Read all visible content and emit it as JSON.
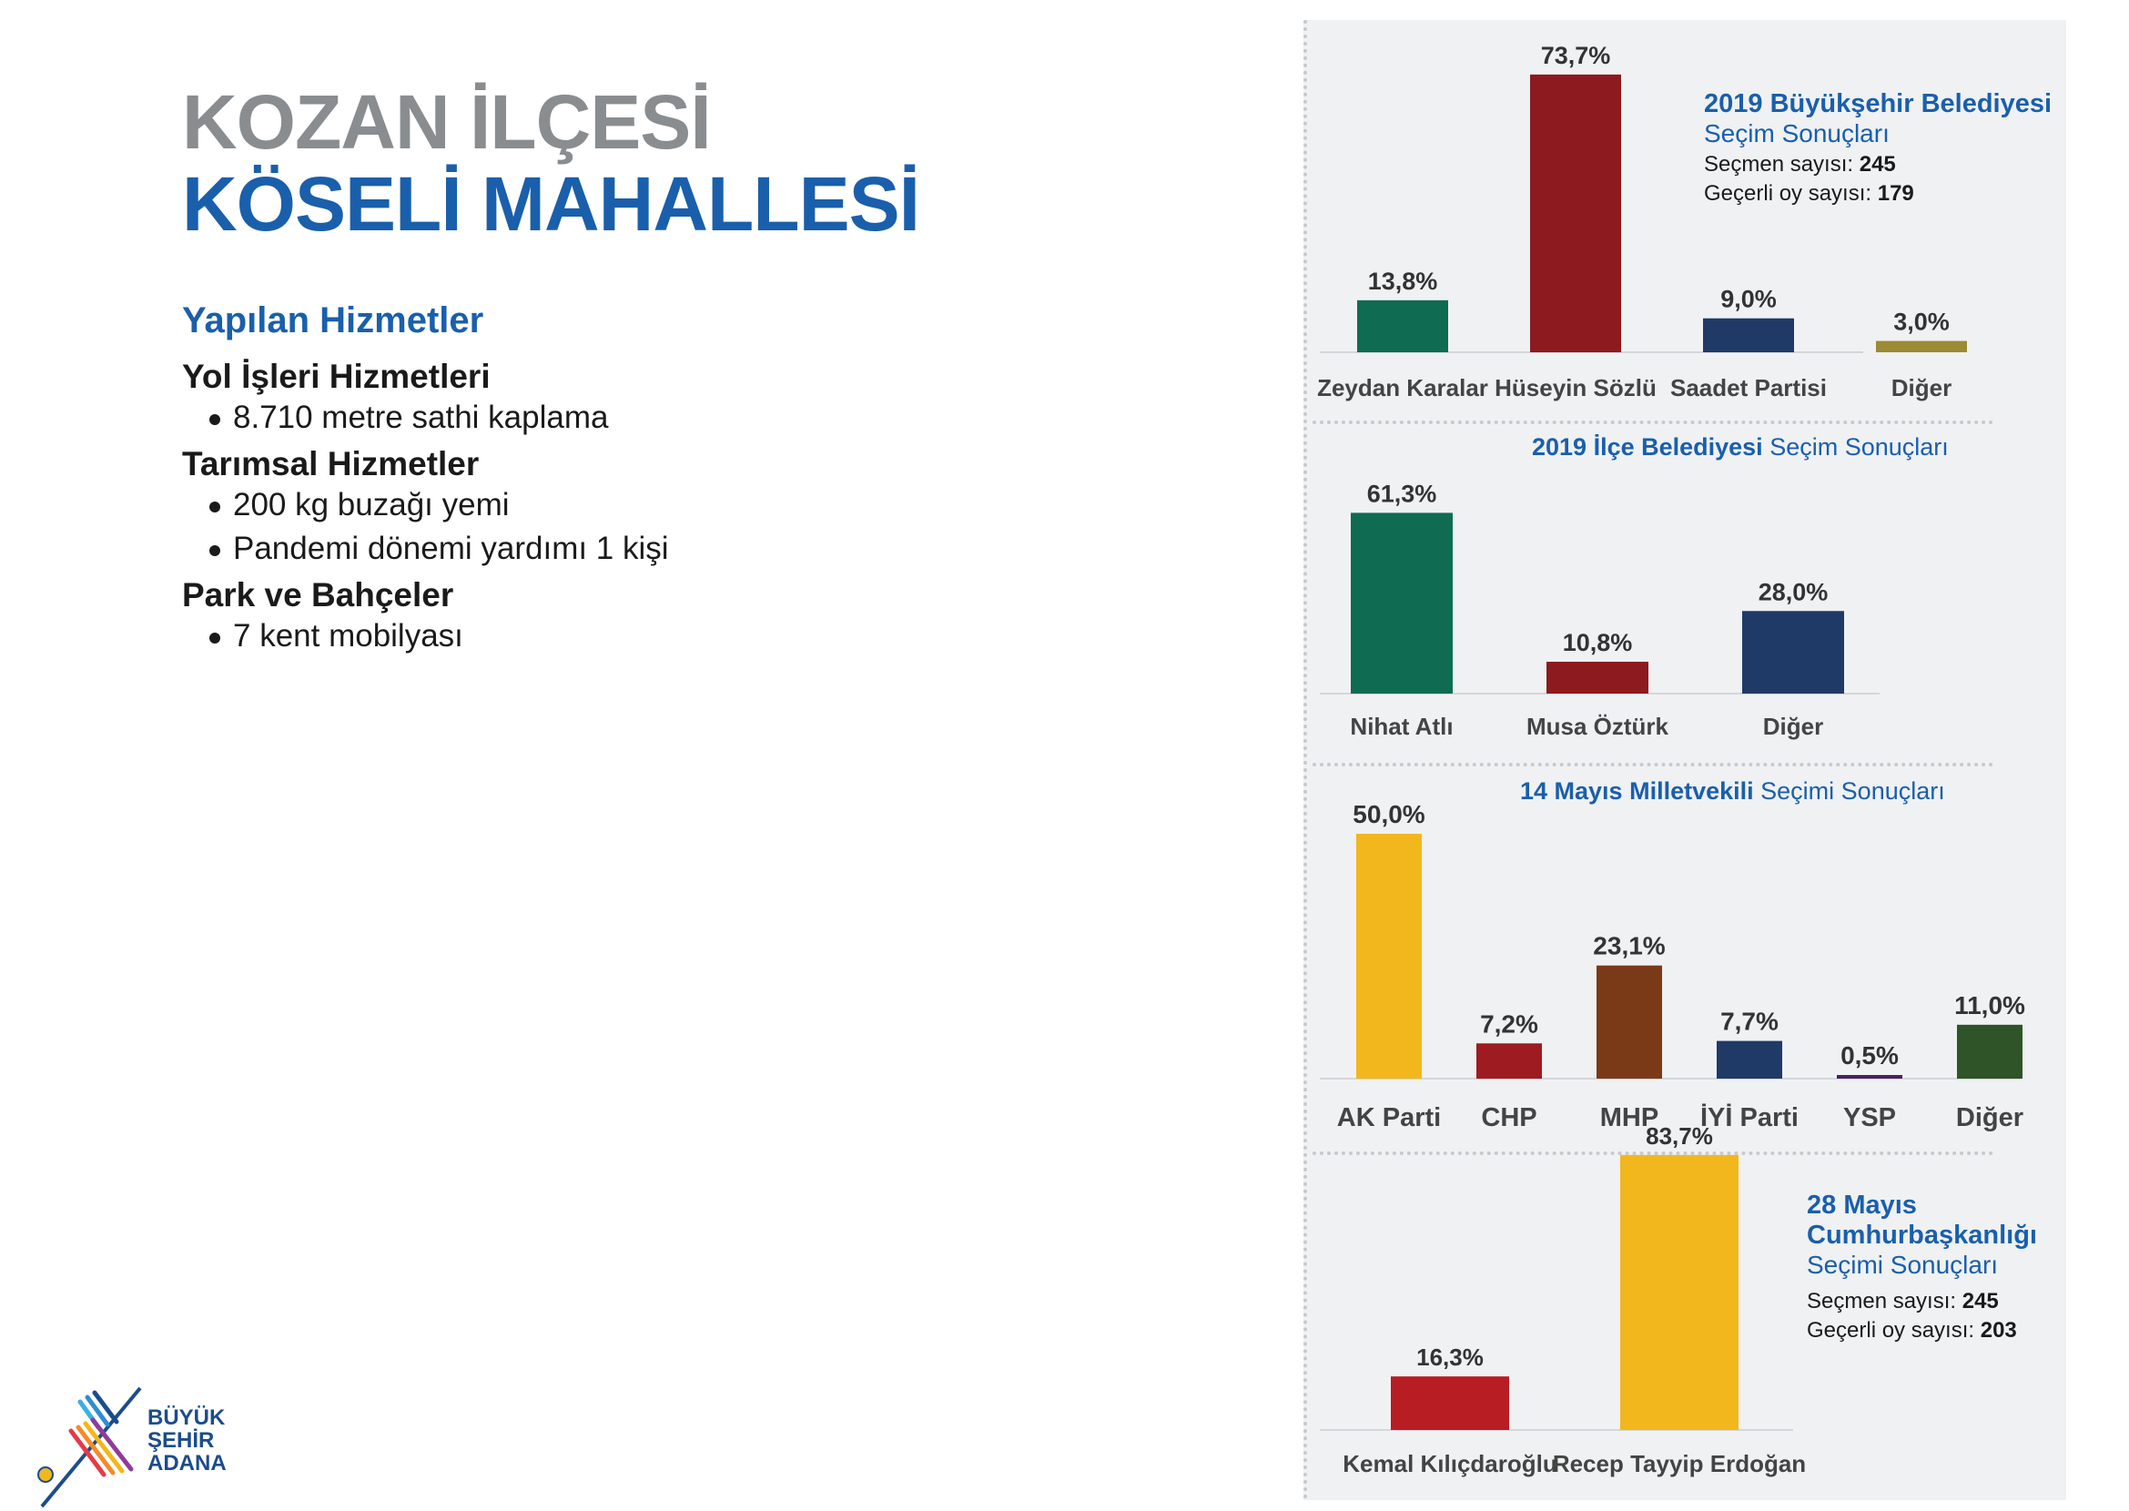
{
  "header": {
    "line1": "KOZAN İLÇESİ",
    "line2": "KÖSELİ MAHALLESİ"
  },
  "services": {
    "title": "Yapılan Hizmetler",
    "groups": [
      {
        "name": "Yol İşleri Hizmetleri",
        "items": [
          "8.710 metre sathi kaplama"
        ]
      },
      {
        "name": "Tarımsal Hizmetler",
        "items": [
          "200 kg buzağı yemi",
          "Pandemi dönemi yardımı 1 kişi"
        ]
      },
      {
        "name": "Park ve Bahçeler",
        "items": [
          "7 kent mobilyası"
        ]
      }
    ]
  },
  "info1": {
    "title_bold": "2019 Büyükşehir Belediyesi",
    "title_rest": "Seçim Sonuçları",
    "voters_label": "Seçmen sayısı:",
    "voters_value": "245",
    "valid_label": "Geçerli oy sayısı:",
    "valid_value": "179"
  },
  "info2": {
    "title_bold": "2019 İlçe Belediyesi",
    "title_rest": "Seçim Sonuçları"
  },
  "info3": {
    "title_bold": "14 Mayıs Milletvekili",
    "title_rest": "Seçimi Sonuçları"
  },
  "info4": {
    "title_bold1": "28 Mayıs",
    "title_bold2": "Cumhurbaşkanlığı",
    "title_rest": "Seçimi Sonuçları",
    "voters_label": "Seçmen sayısı:",
    "voters_value": "245",
    "valid_label": "Geçerli oy sayısı:",
    "valid_value": "203"
  },
  "logo": {
    "line1": "BÜYÜK",
    "line2": "ŞEHİR",
    "line3": "ADANA"
  },
  "chart_data": [
    {
      "type": "bar",
      "categories": [
        "Zeydan Karalar",
        "Hüseyin Sözlü",
        "Saadet Partisi",
        "Diğer"
      ],
      "values": [
        13.8,
        73.7,
        9.0,
        3.0
      ],
      "labels": [
        "13,8%",
        "73,7%",
        "9,0%",
        "3,0%"
      ],
      "colors": [
        "#0f6b52",
        "#8c1a1f",
        "#1f3a66",
        "#9c8a34"
      ]
    },
    {
      "type": "bar",
      "categories": [
        "Nihat Atlı",
        "Musa Öztürk",
        "Diğer"
      ],
      "values": [
        61.3,
        10.8,
        28.0
      ],
      "labels": [
        "61,3%",
        "10,8%",
        "28,0%"
      ],
      "colors": [
        "#0f6b52",
        "#8c1a1f",
        "#1f3a66"
      ]
    },
    {
      "type": "bar",
      "categories": [
        "AK Parti",
        "CHP",
        "MHP",
        "İYİ Parti",
        "YSP",
        "Diğer"
      ],
      "values": [
        50.0,
        7.2,
        23.1,
        7.7,
        0.5,
        11.0
      ],
      "labels": [
        "50,0%",
        "7,2%",
        "23,1%",
        "7,7%",
        "0,5%",
        "11,0%"
      ],
      "colors": [
        "#f2b71c",
        "#9e1b21",
        "#7a3a18",
        "#1f3a66",
        "#4a2060",
        "#2e5427"
      ]
    },
    {
      "type": "bar",
      "categories": [
        "Kemal Kılıçdaroğlu",
        "Recep Tayyip Erdoğan"
      ],
      "values": [
        16.3,
        83.7
      ],
      "labels": [
        "16,3%",
        "83,7%"
      ],
      "colors": [
        "#b81d24",
        "#f2b71c"
      ]
    }
  ]
}
